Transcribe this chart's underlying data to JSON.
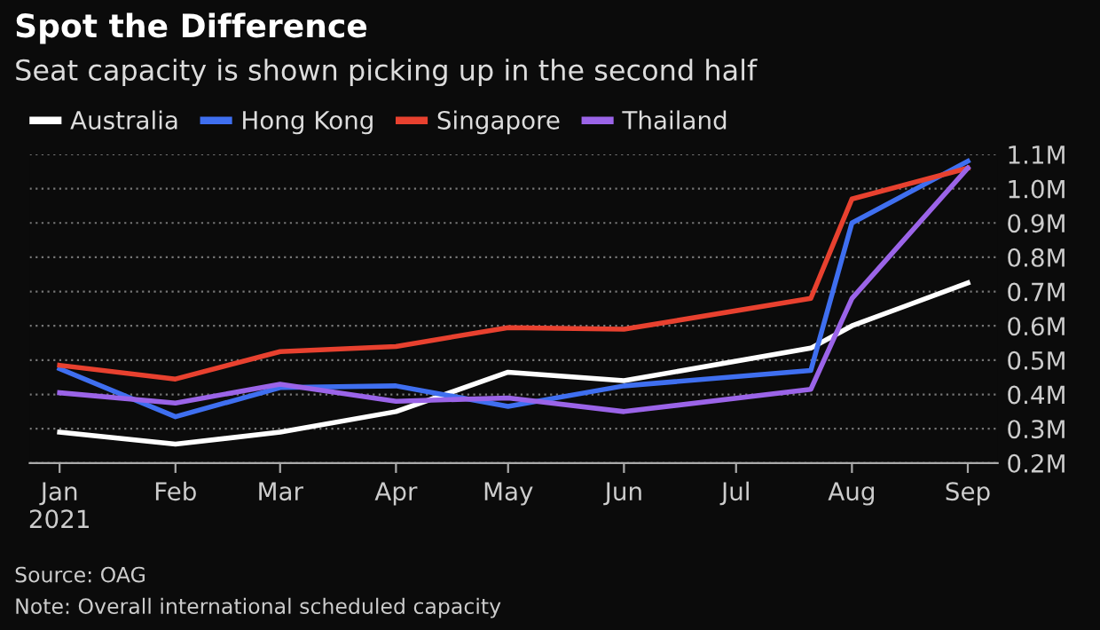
{
  "chart_data": {
    "type": "line",
    "title": "Spot the Difference",
    "subtitle": "Seat capacity is shown picking up in the second half",
    "x": [
      "2021-01-01",
      "2021-02-01",
      "2021-03-01",
      "2021-04-01",
      "2021-05-01",
      "2021-06-01",
      "2021-07-21",
      "2021-08-01",
      "2021-09-01"
    ],
    "series": [
      {
        "name": "Australia",
        "color": "#ffffff",
        "values": [
          0.29,
          0.255,
          0.29,
          0.35,
          0.465,
          0.44,
          0.535,
          0.6,
          0.725
        ]
      },
      {
        "name": "Hong Kong",
        "color": "#3f6ff0",
        "values": [
          0.475,
          0.335,
          0.42,
          0.425,
          0.365,
          0.425,
          0.47,
          0.9,
          1.08
        ]
      },
      {
        "name": "Singapore",
        "color": "#e8412f",
        "values": [
          0.485,
          0.445,
          0.525,
          0.54,
          0.595,
          0.59,
          0.68,
          0.97,
          1.06
        ]
      },
      {
        "name": "Thailand",
        "color": "#9b64e8",
        "values": [
          0.405,
          0.375,
          0.43,
          0.38,
          0.39,
          0.35,
          0.415,
          0.68,
          1.06
        ]
      }
    ],
    "xlim": [
      "2020-12-24",
      "2021-09-09"
    ],
    "xticks": [
      {
        "value": "2021-01-01",
        "label": "Jan\n2021"
      },
      {
        "value": "2021-02-01",
        "label": "Feb"
      },
      {
        "value": "2021-03-01",
        "label": "Mar"
      },
      {
        "value": "2021-04-01",
        "label": "Apr"
      },
      {
        "value": "2021-05-01",
        "label": "May"
      },
      {
        "value": "2021-06-01",
        "label": "Jun"
      },
      {
        "value": "2021-07-01",
        "label": "Jul"
      },
      {
        "value": "2021-08-01",
        "label": "Aug"
      },
      {
        "value": "2021-09-01",
        "label": "Sep"
      }
    ],
    "ylim": [
      0.2,
      1.1
    ],
    "yticks": [
      {
        "value": 0.2,
        "label": "0.2M"
      },
      {
        "value": 0.3,
        "label": "0.3M"
      },
      {
        "value": 0.4,
        "label": "0.4M"
      },
      {
        "value": 0.5,
        "label": "0.5M"
      },
      {
        "value": 0.6,
        "label": "0.6M"
      },
      {
        "value": 0.7,
        "label": "0.7M"
      },
      {
        "value": 0.8,
        "label": "0.8M"
      },
      {
        "value": 0.9,
        "label": "0.9M"
      },
      {
        "value": 1.0,
        "label": "1.0M"
      },
      {
        "value": 1.1,
        "label": "1.1M"
      }
    ],
    "grid": "y",
    "legend": "top left",
    "line_style": "solid",
    "marker": "none",
    "annotations": [
      "Source: OAG",
      "Note: Overall international scheduled capacity"
    ]
  }
}
